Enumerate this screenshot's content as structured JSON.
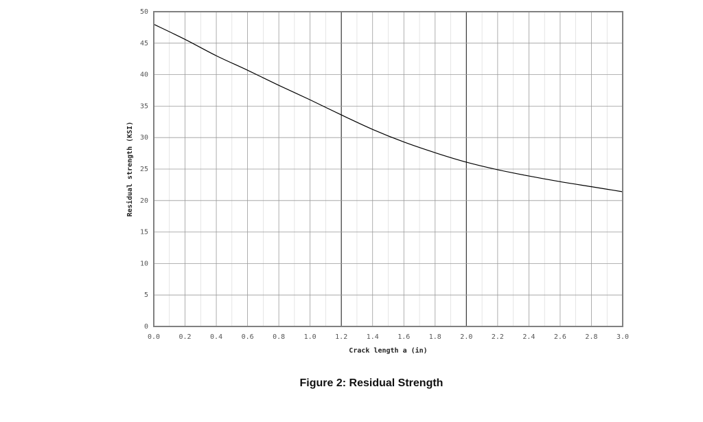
{
  "caption": "Figure 2: Residual Strength",
  "chart_data": {
    "type": "line",
    "xlabel": "Crack length a (in)",
    "ylabel": "Residual strength (KSI)",
    "xlim": [
      0,
      3.0
    ],
    "ylim": [
      0,
      50
    ],
    "x_ticks": [
      "0.0",
      "0.2",
      "0.4",
      "0.6",
      "0.8",
      "1.0",
      "1.2",
      "1.4",
      "1.6",
      "1.8",
      "2.0",
      "2.2",
      "2.4",
      "2.6",
      "2.8",
      "3.0"
    ],
    "y_ticks": [
      "0",
      "5",
      "10",
      "15",
      "20",
      "25",
      "30",
      "35",
      "40",
      "45",
      "50"
    ],
    "grid": true,
    "emphasized_x_gridlines": [
      1.2,
      2.0
    ],
    "series": [
      {
        "color": "#000000",
        "x": [
          0.0,
          0.2,
          0.4,
          0.6,
          0.8,
          1.0,
          1.2,
          1.4,
          1.6,
          1.8,
          2.0,
          2.2,
          2.4,
          2.6,
          2.8,
          3.0
        ],
        "y": [
          48.0,
          45.6,
          43.0,
          40.7,
          38.3,
          36.0,
          33.6,
          31.3,
          29.3,
          27.6,
          26.1,
          24.9,
          23.9,
          23.0,
          22.2,
          21.4
        ]
      }
    ]
  }
}
